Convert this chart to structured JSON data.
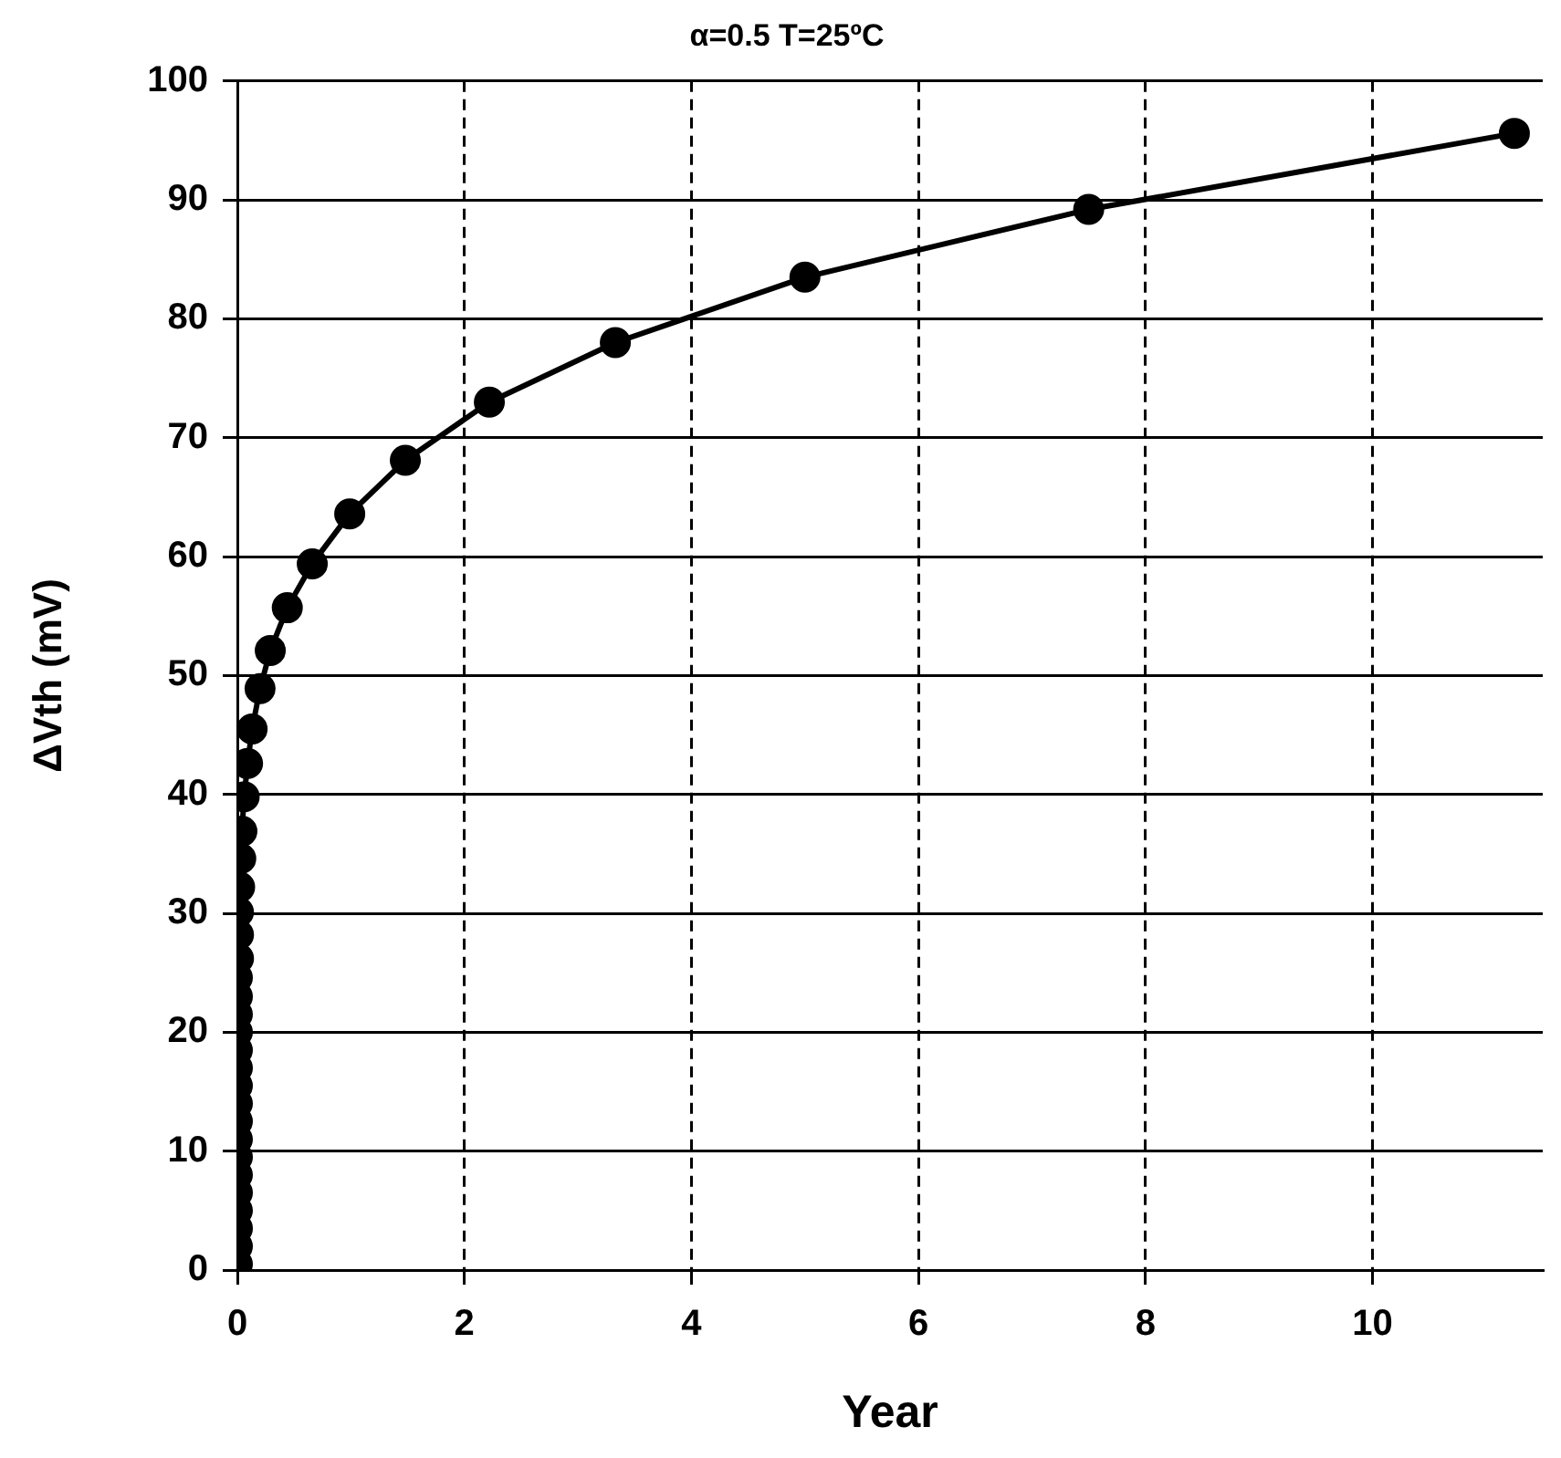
{
  "chart_data": {
    "type": "line",
    "title": "α=0.5 T=25ºC",
    "xlabel": "Year",
    "ylabel": "ΔVth (mV)",
    "x": [
      0,
      0,
      0,
      0,
      0,
      0,
      0,
      0,
      0,
      0,
      0,
      0,
      0,
      0,
      0,
      0,
      0,
      0.01,
      0.01,
      0.01,
      0.02,
      0.03,
      0.04,
      0.06,
      0.09,
      0.13,
      0.2,
      0.29,
      0.44,
      0.66,
      0.99,
      1.48,
      2.22,
      3.33,
      5.0,
      7.5,
      11.25
    ],
    "values": [
      0.5,
      2,
      3.5,
      5,
      6.5,
      8,
      9.5,
      11,
      12.5,
      14,
      15.5,
      17,
      18.5,
      20,
      21.5,
      23.0,
      24.6,
      26.2,
      28.2,
      30.1,
      32.2,
      34.6,
      36.9,
      39.8,
      42.6,
      45.5,
      48.9,
      52.1,
      55.7,
      59.4,
      63.6,
      68.1,
      73.0,
      78.0,
      83.5,
      89.2,
      95.6
    ],
    "color": "#000000",
    "marker": "circle",
    "line_style": "solid",
    "grid": true,
    "legend": false,
    "xlim": [
      0,
      11.5
    ],
    "xticks": [
      0,
      2,
      4,
      6,
      8,
      10
    ],
    "ylim": [
      0,
      100
    ],
    "yticks": [
      0,
      10,
      20,
      30,
      40,
      50,
      60,
      70,
      80,
      90,
      100
    ]
  }
}
